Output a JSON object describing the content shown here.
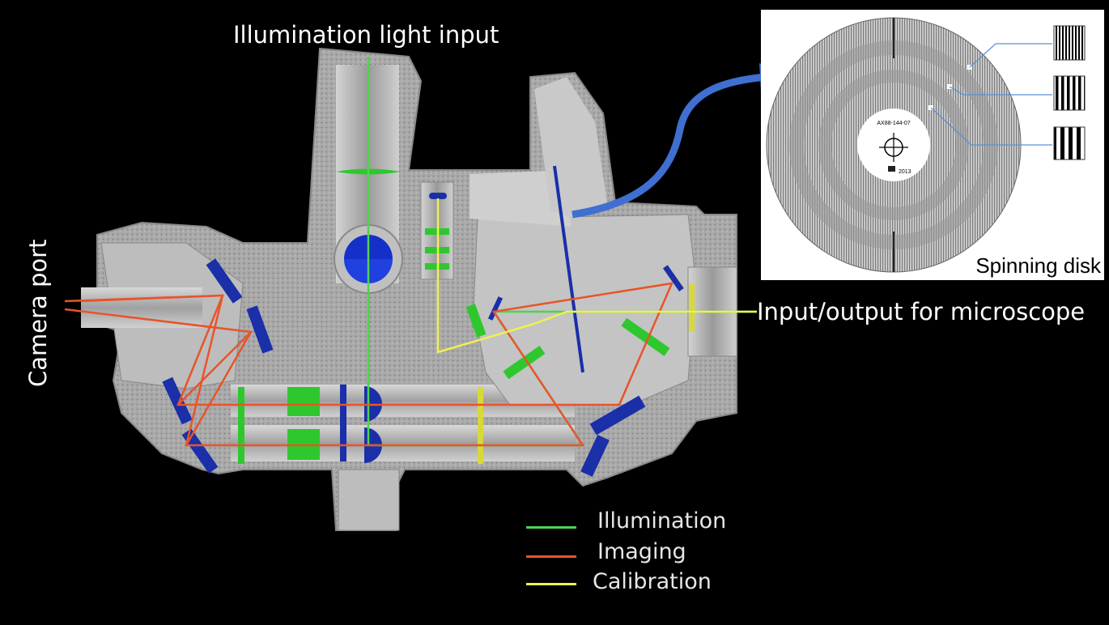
{
  "labels": {
    "illumination_input": "Illumination light input",
    "camera_port": "Camera port",
    "io_microscope": "Input/output for microscope",
    "spinning_disk": "Spinning disk",
    "disk_serial": "AX88-144-07",
    "disk_year": "2013"
  },
  "legend": [
    {
      "label": "Illumination",
      "color": "#4fd24f"
    },
    {
      "label": "Imaging",
      "color": "#e8542a"
    },
    {
      "label": "Calibration",
      "color": "#f0f050"
    }
  ],
  "colors": {
    "housing": "#b4b4b4",
    "speckle": "#8f8f8f",
    "optics_blue": "#1a2fa8",
    "lens_green": "#2ec82e",
    "arrow": "#3f6fd0"
  }
}
